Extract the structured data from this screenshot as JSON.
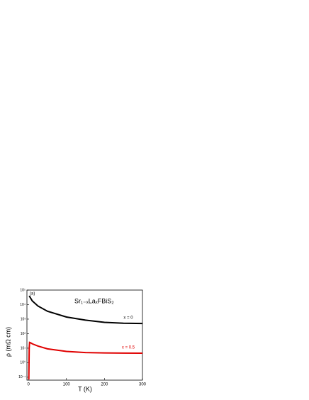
{
  "chart_data": {
    "type": "line",
    "panel_label": "(a)",
    "annotation": "Sr₁₋ₓLaₓFBiS₂",
    "xlabel": "T (K)",
    "ylabel": "ρ (mΩ cm)",
    "xlim": [
      -4,
      300
    ],
    "xticks": [
      0,
      100,
      200,
      300
    ],
    "ylim": [
      0.063,
      100000
    ],
    "yscale": "log",
    "yticks": [
      {
        "value": 0.1,
        "label": "10⁻¹"
      },
      {
        "value": 1,
        "label": "10⁰"
      },
      {
        "value": 10,
        "label": "10¹"
      },
      {
        "value": 100,
        "label": "10²"
      },
      {
        "value": 1000,
        "label": "10³"
      },
      {
        "value": 10000,
        "label": "10⁴"
      },
      {
        "value": 100000,
        "label": "10⁵"
      }
    ],
    "series": [
      {
        "name": "x = 0",
        "color": "#000000",
        "x": [
          2,
          5,
          10,
          25,
          50,
          100,
          150,
          200,
          250,
          300
        ],
        "values": [
          40000,
          30000,
          18000,
          8000,
          3500,
          1400,
          850,
          600,
          520,
          500
        ]
      },
      {
        "name": "x = 0.5",
        "color": "#e00000",
        "x": [
          1,
          2,
          3,
          5,
          10,
          25,
          50,
          100,
          150,
          200,
          250,
          300
        ],
        "values": [
          0.07,
          10,
          25,
          24,
          20,
          14,
          9,
          6,
          5,
          4.7,
          4.6,
          4.5
        ]
      }
    ]
  }
}
